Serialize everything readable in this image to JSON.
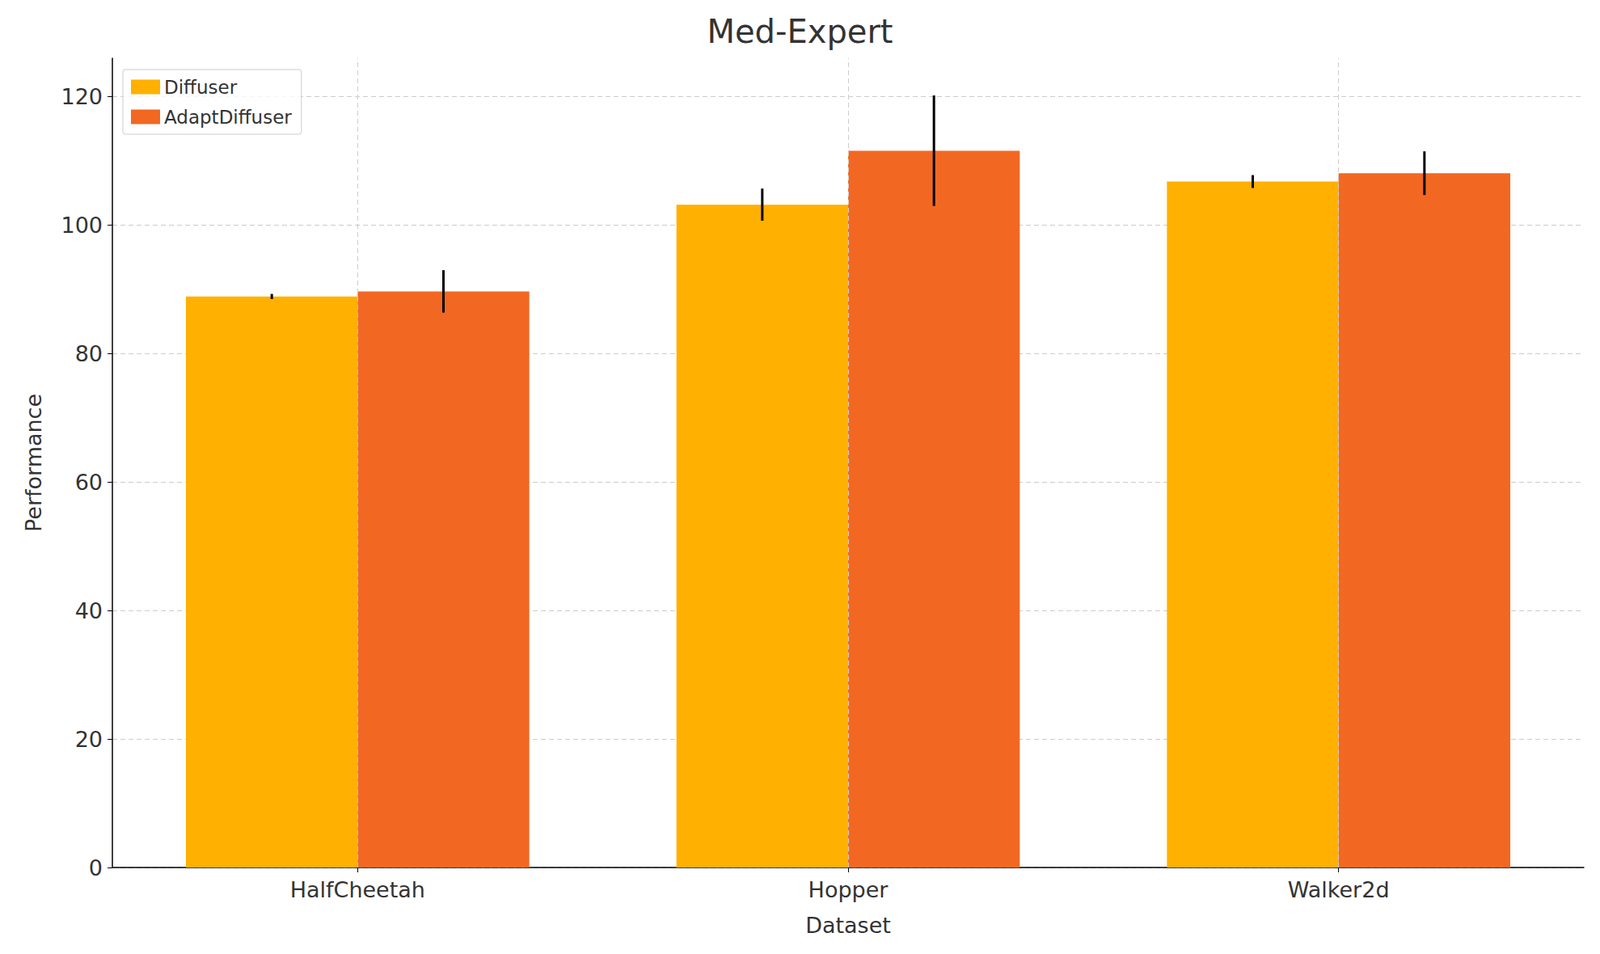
{
  "chart_data": {
    "type": "bar",
    "title": "Med-Expert",
    "x_label": "Dataset",
    "y_label": "Performance",
    "categories": [
      "HalfCheetah",
      "Hopper",
      "Walker2d"
    ],
    "series": [
      {
        "name": "Diffuser",
        "color": "#ffb000",
        "values": [
          88.9,
          103.2,
          106.8
        ],
        "errors": [
          0.4,
          2.5,
          1.0
        ]
      },
      {
        "name": "AdaptDiffuser",
        "color": "#f26822",
        "values": [
          89.7,
          111.6,
          108.1
        ],
        "errors": [
          3.3,
          8.6,
          3.4
        ]
      }
    ],
    "ylim": [
      0,
      126
    ],
    "yticks": [
      0,
      20,
      40,
      60,
      80,
      100,
      120
    ],
    "grid": true,
    "legend": "upper left"
  }
}
